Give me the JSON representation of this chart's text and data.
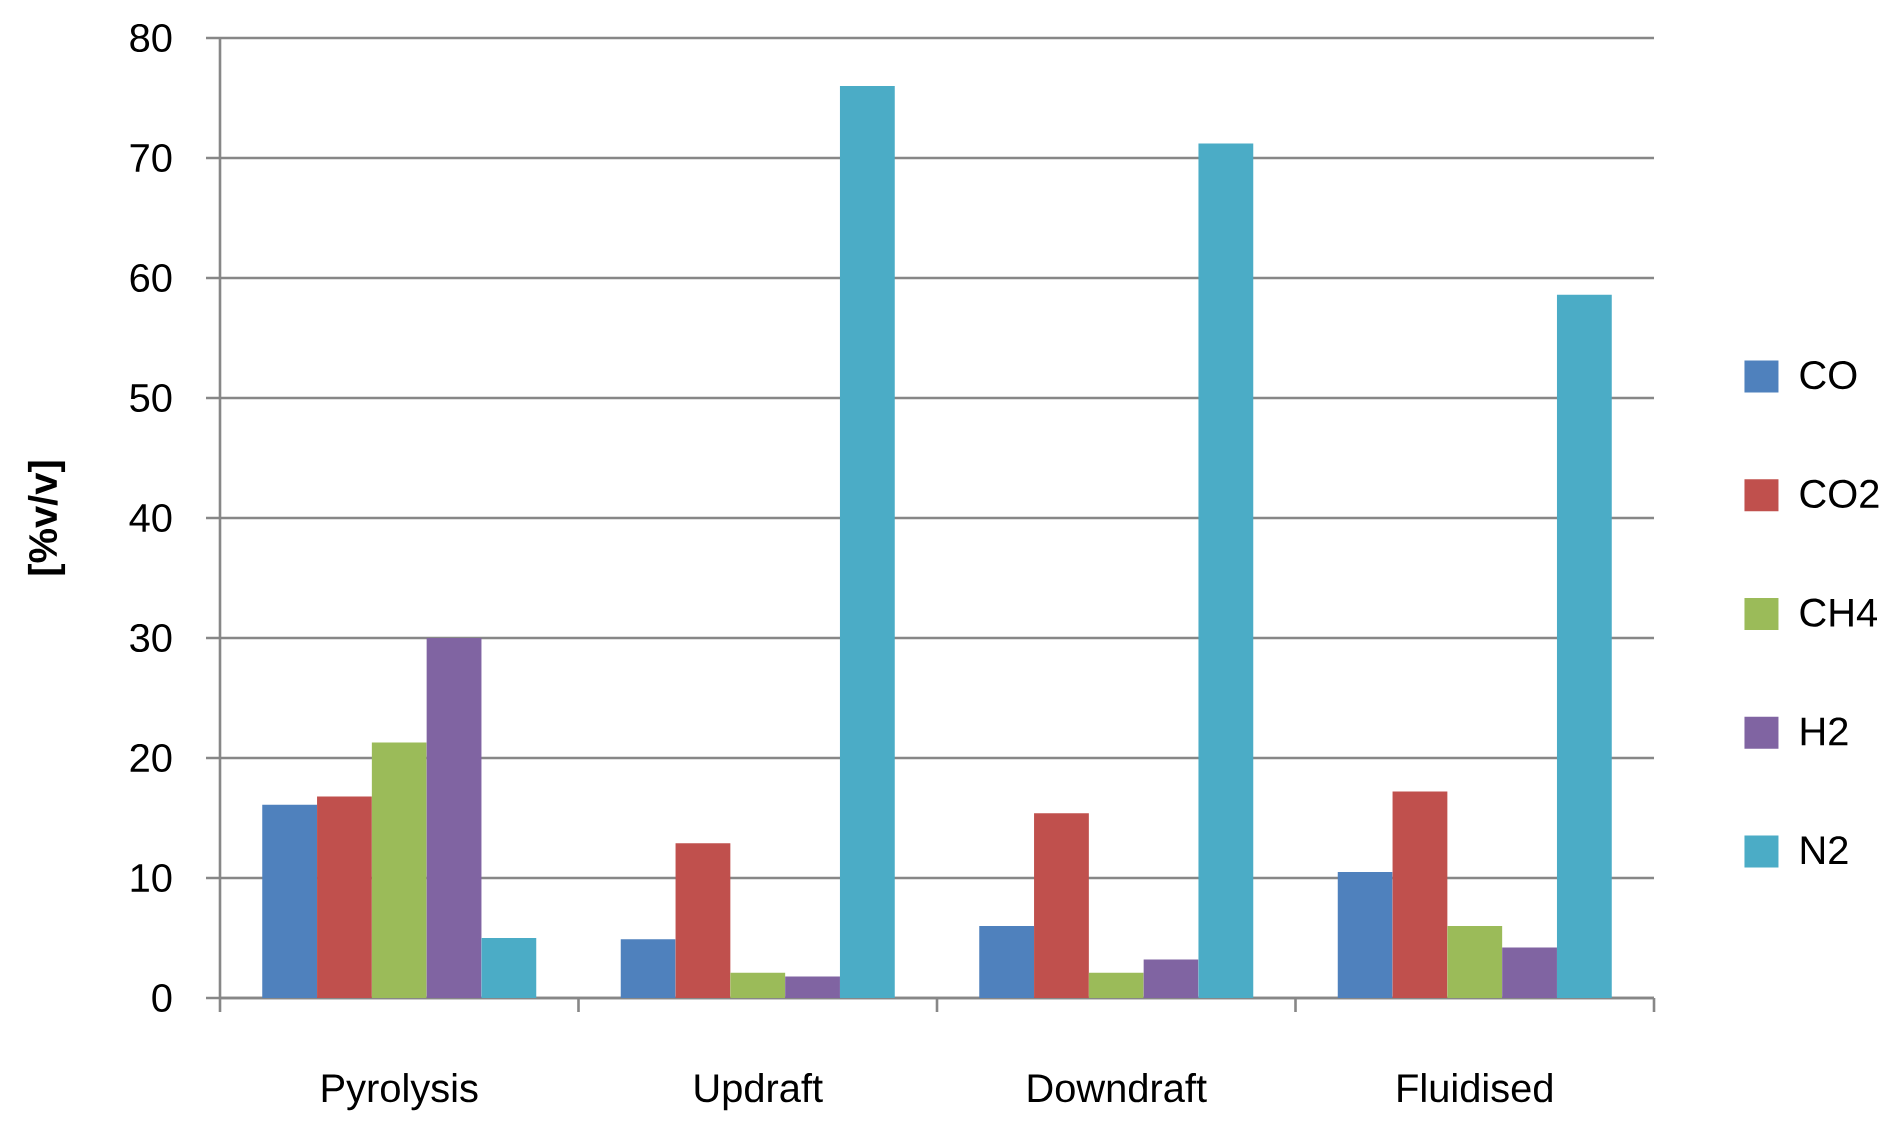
{
  "chart_data": {
    "type": "bar",
    "ylabel": "[%v/v]",
    "categories": [
      "Pyrolysis",
      "Updraft",
      "Downdraft",
      "Fluidised"
    ],
    "series": [
      {
        "name": "CO",
        "color": "#4f81bd",
        "values": [
          16.1,
          4.9,
          6.0,
          10.5
        ]
      },
      {
        "name": "CO2",
        "color": "#c0504d",
        "values": [
          16.8,
          12.9,
          15.4,
          17.2
        ]
      },
      {
        "name": "CH4",
        "color": "#9bbb59",
        "values": [
          21.3,
          2.1,
          2.1,
          6.0
        ]
      },
      {
        "name": "H2",
        "color": "#8064a2",
        "values": [
          30.0,
          1.8,
          3.2,
          4.2
        ]
      },
      {
        "name": "N2",
        "color": "#4bacc6",
        "values": [
          5.0,
          76.0,
          71.2,
          58.6
        ]
      }
    ],
    "ylim": [
      0,
      80
    ],
    "yticks": [
      0,
      10,
      20,
      30,
      40,
      50,
      60,
      70,
      80
    ],
    "grid": "y",
    "legend": "right"
  }
}
